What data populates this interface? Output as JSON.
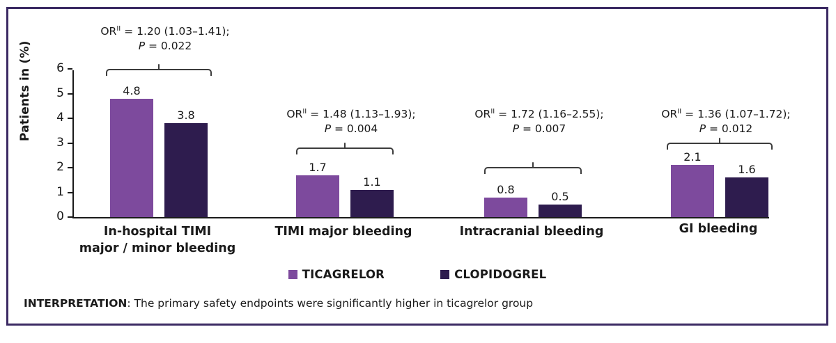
{
  "chart_data": {
    "type": "bar",
    "ylabel": "Patients in (%)",
    "ylim": [
      0,
      6
    ],
    "yticks": [
      0,
      1,
      2,
      3,
      4,
      5,
      6
    ],
    "grid": false,
    "legend_position": "bottom",
    "categories": [
      "In-hospital TIMI major / minor bleeding",
      "TIMI major bleeding",
      "Intracranial bleeding",
      "GI bleeding"
    ],
    "categories_display": [
      [
        "In-hospital TIMI",
        "major / minor bleeding"
      ],
      [
        "TIMI major bleeding",
        ""
      ],
      [
        "Intracranial bleeding",
        ""
      ],
      [
        "GI bleeding",
        ""
      ]
    ],
    "series": [
      {
        "name": "TICAGRELOR",
        "color": "#7d4a9d",
        "values": [
          4.8,
          1.7,
          0.8,
          2.1
        ]
      },
      {
        "name": "CLOPIDOGREL",
        "color": "#2e1c4e",
        "values": [
          3.8,
          1.1,
          0.5,
          1.6
        ]
      }
    ],
    "annotations": [
      {
        "or_prefix": "OR",
        "or_sup": "II",
        "or_rest": " = 1.20 (1.03–1.41);",
        "p_label": "P",
        "p_rest": " = 0.022"
      },
      {
        "or_prefix": "OR",
        "or_sup": "II",
        "or_rest": " = 1.48 (1.13–1.93);",
        "p_label": "P",
        "p_rest": " = 0.004"
      },
      {
        "or_prefix": "OR",
        "or_sup": "II",
        "or_rest": " = 1.72 (1.16–2.55);",
        "p_label": "P",
        "p_rest": " = 0.007"
      },
      {
        "or_prefix": "OR",
        "or_sup": "II",
        "or_rest": " = 1.36 (1.07–1.72);",
        "p_label": "P",
        "p_rest": " = 0.012"
      }
    ]
  },
  "frame": {
    "border_color": "#3b2a63"
  },
  "interpretation": {
    "label": "INTERPRETATION",
    "text": ": The primary safety endpoints were significantly higher in ticagrelor group"
  }
}
